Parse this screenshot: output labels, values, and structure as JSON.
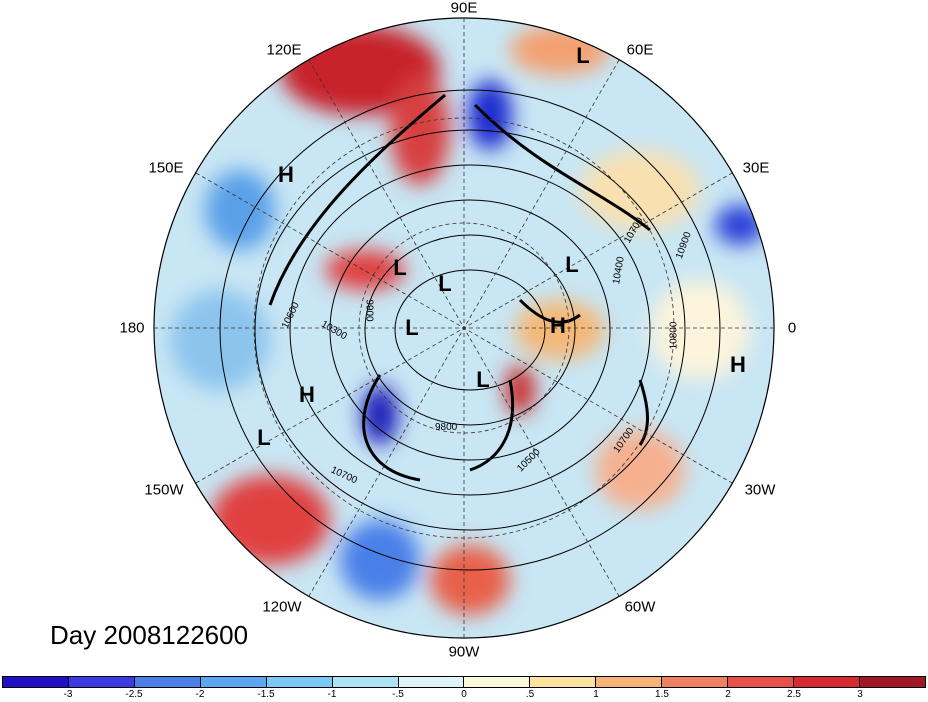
{
  "title": "Day 2008122600",
  "longitude_labels": {
    "lon90E": "90E",
    "lon120E": "120E",
    "lon60E": "60E",
    "lon150E": "150E",
    "lon30E": "30E",
    "lon180": "180",
    "lon0": "0",
    "lon150W": "150W",
    "lon30W": "30W",
    "lon120W": "120W",
    "lon60W": "60W",
    "lon90W": "90W"
  },
  "pressure_centers": [
    "L",
    "H",
    "L",
    "L",
    "L",
    "L",
    "H",
    "L",
    "H",
    "H",
    "L"
  ],
  "contour_labels": [
    "10900",
    "10800",
    "10700",
    "10600",
    "10300",
    "9900",
    "9800",
    "10700",
    "10500",
    "10700",
    "10400"
  ],
  "colorbar": {
    "colors": [
      "#1f10c8",
      "#3a3ae0",
      "#4a7fe8",
      "#5aa6f0",
      "#7cc8f4",
      "#aae4f6",
      "#dff4f8",
      "#fcf8dc",
      "#fae2a0",
      "#f6b478",
      "#f08062",
      "#e8504a",
      "#d42a30",
      "#a01828"
    ],
    "ticks": [
      "-3",
      "-2.5",
      "-2",
      "-1.5",
      "-1",
      "-.5",
      "0",
      ".5",
      "1",
      "1.5",
      "2",
      "2.5",
      "3"
    ]
  }
}
